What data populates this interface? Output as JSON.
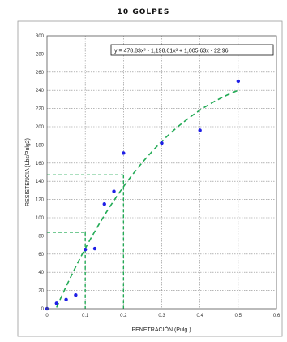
{
  "chart_data": {
    "type": "scatter",
    "title": "10 GOLPES",
    "xlabel": "PENETRACIÓN (Pulg.)",
    "ylabel": "RESISTENCIA (Lbs/Pulg2)",
    "xlim": [
      0,
      0.6
    ],
    "ylim": [
      0,
      300
    ],
    "xticks": [
      "0",
      "0.1",
      "0.2",
      "0.3",
      "0.4",
      "0.5",
      "0.6"
    ],
    "yticks": [
      "0",
      "20",
      "40",
      "60",
      "80",
      "100",
      "120",
      "140",
      "160",
      "180",
      "200",
      "220",
      "240",
      "260",
      "280",
      "300"
    ],
    "grid": true,
    "series": [
      {
        "x": [
          0.025,
          0.05,
          0.075,
          0.1,
          0.125,
          0.15,
          0.175,
          0.2,
          0.3,
          0.4,
          0.5
        ],
        "y": [
          6,
          10,
          15,
          65,
          66,
          115,
          129,
          171,
          182,
          196,
          250
        ],
        "color": "#1f1fe6"
      }
    ],
    "trendline": {
      "equation": "y = 478.83x³ - 1,198.61x² + 1,005.63x - 22.96",
      "coefficients": [
        478.83,
        -1198.61,
        1005.63,
        -22.96
      ],
      "x_range": [
        0.025,
        0.5
      ],
      "color": "#22aa55"
    },
    "reference_lines": [
      {
        "x": 0.1,
        "y": 84
      },
      {
        "x": 0.2,
        "y": 147
      }
    ],
    "reference_color": "#22aa55"
  }
}
